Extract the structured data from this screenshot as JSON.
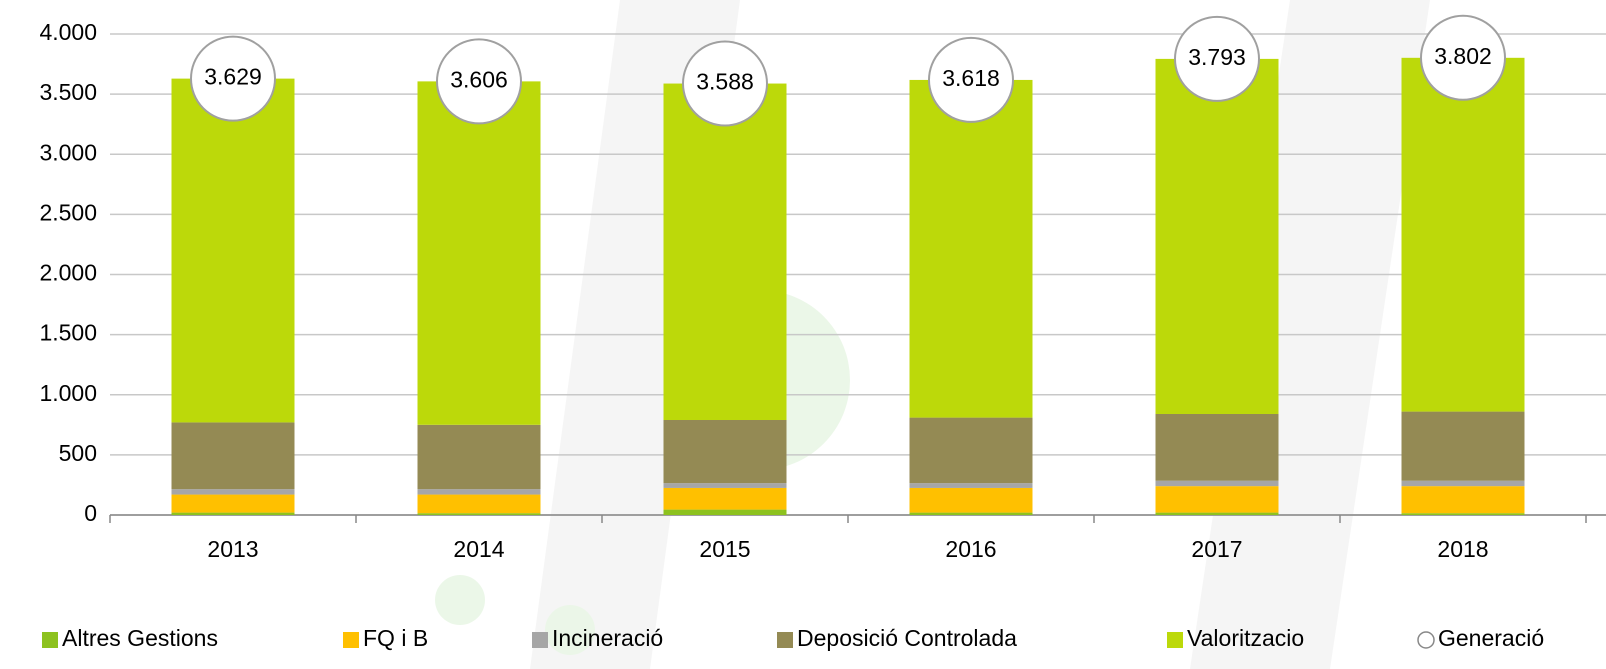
{
  "chart_data": {
    "type": "bar",
    "stacked": true,
    "categories": [
      "2013",
      "2014",
      "2015",
      "2016",
      "2017",
      "2018"
    ],
    "series": [
      {
        "name": "Altres Gestions",
        "color": "#8dc21f",
        "values": [
          20,
          15,
          45,
          20,
          20,
          15
        ]
      },
      {
        "name": "FQ i B",
        "color": "#ffc000",
        "values": [
          150,
          155,
          180,
          205,
          220,
          225
        ]
      },
      {
        "name": "Incineració",
        "color": "#a6a6a6",
        "values": [
          45,
          45,
          40,
          40,
          45,
          45
        ]
      },
      {
        "name": "Deposició Controlada",
        "color": "#948a54",
        "values": [
          555,
          535,
          525,
          545,
          555,
          575
        ]
      },
      {
        "name": "Valoritzacio",
        "color": "#bcd90a",
        "values": [
          2859,
          2856,
          2798,
          2808,
          2953,
          2942
        ]
      }
    ],
    "totals": {
      "name": "Generació",
      "color": "#ffffff",
      "values": [
        3629,
        3606,
        3588,
        3618,
        3793,
        3802
      ],
      "value_labels": [
        "3.629",
        "3.606",
        "3.588",
        "3.618",
        "3.793",
        "3.802"
      ]
    },
    "ylim": [
      0,
      4000
    ],
    "yticks": [
      0,
      500,
      {
        "value": 1000,
        "label": "1.000"
      },
      {
        "value": 1500,
        "label": "1.500"
      },
      {
        "value": 2000,
        "label": "2.000"
      },
      {
        "value": 2500,
        "label": "2.500"
      },
      {
        "value": 3000,
        "label": "3.000"
      },
      {
        "value": 3500,
        "label": "3.500"
      },
      {
        "value": 4000,
        "label": "4.000"
      }
    ],
    "grid": true,
    "legend": "bottom"
  }
}
